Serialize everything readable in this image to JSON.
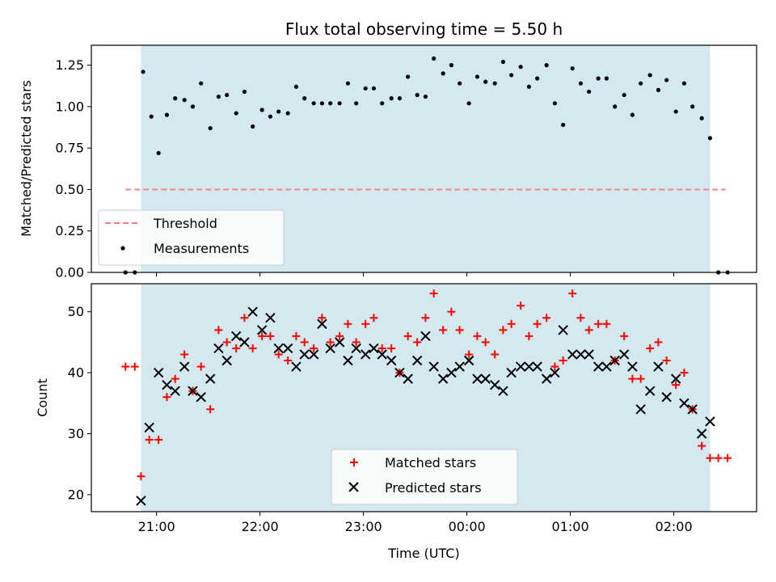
{
  "chart_data": [
    {
      "type": "scatter",
      "title": "Flux total observing time = 5.50 h",
      "xlabel": "",
      "ylabel": "Matched/Predicted stars",
      "ylim": [
        0,
        1.37
      ],
      "yticks": [
        "0.00",
        "0.25",
        "0.50",
        "0.75",
        "1.00",
        "1.25"
      ],
      "shaded_region": {
        "x": [
          20.85,
          26.35
        ],
        "color": "#d3e9ef"
      },
      "legend": {
        "placement": "lower-left"
      },
      "series": [
        {
          "name": "Threshold",
          "kind": "dashed-line",
          "color": "#f08080",
          "x": [
            20.7,
            26.5
          ],
          "y": [
            0.5,
            0.5
          ]
        },
        {
          "name": "Measurements",
          "kind": "dot",
          "color": "#000000",
          "x": [
            20.7,
            20.79,
            20.87,
            20.95,
            21.02,
            21.1,
            21.18,
            21.27,
            21.35,
            21.43,
            21.52,
            21.6,
            21.68,
            21.77,
            21.85,
            21.93,
            22.02,
            22.1,
            22.18,
            22.27,
            22.35,
            22.43,
            22.52,
            22.6,
            22.68,
            22.77,
            22.85,
            22.93,
            23.02,
            23.1,
            23.18,
            23.27,
            23.35,
            23.43,
            23.52,
            23.6,
            23.68,
            23.77,
            23.85,
            23.93,
            24.02,
            24.1,
            24.18,
            24.27,
            24.35,
            24.43,
            24.52,
            24.6,
            24.68,
            24.77,
            24.85,
            24.93,
            25.02,
            25.1,
            25.18,
            25.27,
            25.35,
            25.43,
            25.52,
            25.6,
            25.68,
            25.77,
            25.85,
            25.93,
            26.02,
            26.1,
            26.18,
            26.27,
            26.35,
            26.43,
            26.52
          ],
          "y": [
            0.0,
            0.0,
            1.21,
            0.94,
            0.72,
            0.95,
            1.05,
            1.04,
            1.0,
            1.14,
            0.87,
            1.06,
            1.07,
            0.96,
            1.09,
            0.88,
            0.98,
            0.94,
            0.97,
            0.96,
            1.12,
            1.05,
            1.02,
            1.02,
            1.02,
            1.02,
            1.14,
            1.02,
            1.11,
            1.11,
            1.02,
            1.05,
            1.05,
            1.18,
            1.07,
            1.06,
            1.29,
            1.2,
            1.25,
            1.14,
            1.02,
            1.18,
            1.15,
            1.14,
            1.27,
            1.19,
            1.24,
            1.12,
            1.17,
            1.25,
            1.02,
            0.89,
            1.23,
            1.14,
            1.09,
            1.17,
            1.17,
            1.0,
            1.07,
            0.95,
            1.14,
            1.19,
            1.1,
            1.16,
            0.97,
            1.14,
            1.0,
            0.93,
            0.81,
            0.0,
            0.0
          ]
        }
      ]
    },
    {
      "type": "scatter",
      "xlabel": "Time (UTC)",
      "ylabel": "Count",
      "xlim": [
        20.37,
        26.8
      ],
      "ylim": [
        17.2,
        54.6
      ],
      "xticks": [
        {
          "x": 21,
          "label": "21:00"
        },
        {
          "x": 22,
          "label": "22:00"
        },
        {
          "x": 23,
          "label": "23:00"
        },
        {
          "x": 24,
          "label": "00:00"
        },
        {
          "x": 25,
          "label": "01:00"
        },
        {
          "x": 26,
          "label": "02:00"
        }
      ],
      "yticks": [
        "20",
        "30",
        "40",
        "50"
      ],
      "shaded_region": {
        "x": [
          20.85,
          26.35
        ],
        "color": "#d3e9ef"
      },
      "legend": {
        "placement": "lower-center"
      },
      "series": [
        {
          "name": "Matched stars",
          "kind": "plus",
          "color": "#ff0000",
          "x": [
            20.7,
            20.79,
            20.85,
            20.93,
            21.02,
            21.1,
            21.18,
            21.27,
            21.35,
            21.43,
            21.52,
            21.6,
            21.68,
            21.77,
            21.85,
            21.93,
            22.02,
            22.1,
            22.18,
            22.27,
            22.35,
            22.43,
            22.52,
            22.6,
            22.68,
            22.77,
            22.85,
            22.93,
            23.02,
            23.1,
            23.18,
            23.27,
            23.35,
            23.43,
            23.52,
            23.6,
            23.68,
            23.77,
            23.85,
            23.93,
            24.02,
            24.1,
            24.18,
            24.27,
            24.35,
            24.43,
            24.52,
            24.6,
            24.68,
            24.77,
            24.85,
            24.93,
            25.02,
            25.1,
            25.18,
            25.27,
            25.35,
            25.43,
            25.52,
            25.6,
            25.68,
            25.77,
            25.85,
            25.93,
            26.02,
            26.1,
            26.18,
            26.27,
            26.35,
            26.43,
            26.52
          ],
          "y": [
            41,
            41,
            23,
            29,
            29,
            36,
            39,
            43,
            37,
            41,
            34,
            47,
            45,
            44,
            49,
            44,
            46,
            46,
            43,
            42,
            46,
            45,
            44,
            49,
            45,
            46,
            48,
            45,
            48,
            49,
            44,
            44,
            40,
            46,
            45,
            49,
            53,
            47,
            50,
            47,
            43,
            46,
            45,
            43,
            47,
            48,
            51,
            46,
            48,
            49,
            41,
            42,
            53,
            49,
            47,
            48,
            48,
            42,
            46,
            39,
            39,
            44,
            45,
            42,
            38,
            40,
            34,
            28,
            26,
            26,
            26
          ]
        },
        {
          "name": "Predicted stars",
          "kind": "x",
          "color": "#000000",
          "x": [
            20.85,
            20.93,
            21.02,
            21.1,
            21.18,
            21.27,
            21.35,
            21.43,
            21.52,
            21.6,
            21.68,
            21.77,
            21.85,
            21.93,
            22.02,
            22.1,
            22.18,
            22.27,
            22.35,
            22.43,
            22.52,
            22.6,
            22.68,
            22.77,
            22.85,
            22.93,
            23.02,
            23.1,
            23.18,
            23.27,
            23.35,
            23.43,
            23.52,
            23.6,
            23.68,
            23.77,
            23.85,
            23.93,
            24.02,
            24.1,
            24.18,
            24.27,
            24.35,
            24.43,
            24.52,
            24.6,
            24.68,
            24.77,
            24.85,
            24.93,
            25.02,
            25.1,
            25.18,
            25.27,
            25.35,
            25.43,
            25.52,
            25.6,
            25.68,
            25.77,
            25.85,
            25.93,
            26.02,
            26.1,
            26.18,
            26.27,
            26.35
          ],
          "y": [
            19,
            31,
            40,
            38,
            37,
            41,
            37,
            36,
            39,
            44,
            42,
            46,
            45,
            50,
            47,
            49,
            44,
            44,
            41,
            43,
            43,
            48,
            44,
            45,
            42,
            44,
            43,
            44,
            43,
            42,
            40,
            39,
            42,
            46,
            41,
            39,
            40,
            41,
            42,
            39,
            39,
            38,
            37,
            40,
            41,
            41,
            41,
            39,
            40,
            47,
            43,
            43,
            43,
            41,
            41,
            42,
            43,
            41,
            34,
            37,
            41,
            36,
            39,
            35,
            34,
            30,
            32
          ]
        }
      ]
    }
  ]
}
